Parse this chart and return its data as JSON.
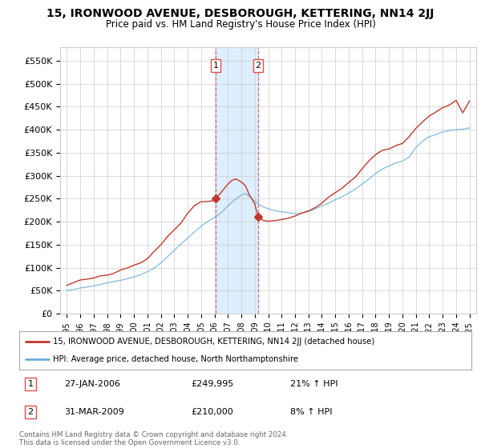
{
  "title": "15, IRONWOOD AVENUE, DESBOROUGH, KETTERING, NN14 2JJ",
  "subtitle": "Price paid vs. HM Land Registry's House Price Index (HPI)",
  "ylabel_ticks": [
    "£0",
    "£50K",
    "£100K",
    "£150K",
    "£200K",
    "£250K",
    "£300K",
    "£350K",
    "£400K",
    "£450K",
    "£500K",
    "£550K"
  ],
  "ytick_values": [
    0,
    50000,
    100000,
    150000,
    200000,
    250000,
    300000,
    350000,
    400000,
    450000,
    500000,
    550000
  ],
  "ylim": [
    0,
    580000
  ],
  "sale1_date": 2006.08,
  "sale1_price": 249995,
  "sale1_label": "1",
  "sale2_date": 2009.25,
  "sale2_price": 210000,
  "sale2_label": "2",
  "legend_line1": "15, IRONWOOD AVENUE, DESBOROUGH, KETTERING, NN14 2JJ (detached house)",
  "legend_line2": "HPI: Average price, detached house, North Northamptonshire",
  "table_row1": [
    "1",
    "27-JAN-2006",
    "£249,995",
    "21% ↑ HPI"
  ],
  "table_row2": [
    "2",
    "31-MAR-2009",
    "£210,000",
    "8% ↑ HPI"
  ],
  "footnote": "Contains HM Land Registry data © Crown copyright and database right 2024.\nThis data is licensed under the Open Government Licence v3.0.",
  "hpi_color": "#6baed6",
  "price_color": "#c0392b",
  "shaded_color": "#ddeeff",
  "vline_color": "#e05050",
  "background_color": "#ffffff",
  "grid_color": "#cccccc",
  "hpi_pts_x": [
    1995,
    1995.5,
    1996,
    1996.5,
    1997,
    1997.5,
    1998,
    1998.5,
    1999,
    1999.5,
    2000,
    2000.5,
    2001,
    2001.5,
    2002,
    2002.5,
    2003,
    2003.5,
    2004,
    2004.5,
    2005,
    2005.5,
    2006,
    2006.5,
    2007,
    2007.5,
    2008,
    2008.3,
    2008.6,
    2009,
    2009.3,
    2009.6,
    2010,
    2010.5,
    2011,
    2011.5,
    2012,
    2012.5,
    2013,
    2013.5,
    2014,
    2014.5,
    2015,
    2015.5,
    2016,
    2016.5,
    2017,
    2017.5,
    2018,
    2018.5,
    2019,
    2019.5,
    2020,
    2020.5,
    2021,
    2021.5,
    2022,
    2022.5,
    2023,
    2023.5,
    2024,
    2024.5,
    2025
  ],
  "hpi_pts_y": [
    50000,
    52000,
    55000,
    57000,
    60000,
    63000,
    66000,
    69000,
    72000,
    76000,
    80000,
    85000,
    92000,
    100000,
    112000,
    125000,
    138000,
    152000,
    165000,
    178000,
    190000,
    200000,
    210000,
    220000,
    235000,
    248000,
    258000,
    262000,
    255000,
    245000,
    238000,
    232000,
    228000,
    224000,
    222000,
    220000,
    218000,
    220000,
    223000,
    228000,
    234000,
    240000,
    248000,
    255000,
    263000,
    272000,
    282000,
    292000,
    305000,
    315000,
    322000,
    328000,
    332000,
    340000,
    360000,
    375000,
    385000,
    390000,
    395000,
    398000,
    400000,
    402000,
    405000
  ],
  "price_pts_x": [
    1995,
    1995.5,
    1996,
    1996.5,
    1997,
    1997.5,
    1998,
    1998.5,
    1999,
    1999.5,
    2000,
    2000.5,
    2001,
    2001.5,
    2002,
    2002.5,
    2003,
    2003.5,
    2004,
    2004.5,
    2005,
    2005.5,
    2006,
    2006.08,
    2006.5,
    2007,
    2007.3,
    2007.6,
    2008,
    2008.3,
    2008.6,
    2009,
    2009.25,
    2009.6,
    2010,
    2010.5,
    2011,
    2011.5,
    2012,
    2012.5,
    2013,
    2013.5,
    2014,
    2014.5,
    2015,
    2015.5,
    2016,
    2016.5,
    2017,
    2017.5,
    2018,
    2018.5,
    2019,
    2019.5,
    2020,
    2020.5,
    2021,
    2021.5,
    2022,
    2022.5,
    2023,
    2023.5,
    2024,
    2024.5,
    2025
  ],
  "price_pts_y": [
    65000,
    68000,
    70000,
    73000,
    76000,
    80000,
    84000,
    88000,
    92000,
    97000,
    103000,
    112000,
    122000,
    134000,
    150000,
    168000,
    185000,
    200000,
    218000,
    232000,
    242000,
    246000,
    248000,
    249995,
    262000,
    282000,
    290000,
    292000,
    285000,
    278000,
    260000,
    240000,
    210000,
    205000,
    200000,
    202000,
    205000,
    210000,
    215000,
    220000,
    225000,
    232000,
    240000,
    250000,
    260000,
    272000,
    285000,
    300000,
    318000,
    332000,
    342000,
    352000,
    358000,
    365000,
    372000,
    385000,
    400000,
    415000,
    430000,
    438000,
    448000,
    455000,
    460000,
    435000,
    465000
  ]
}
